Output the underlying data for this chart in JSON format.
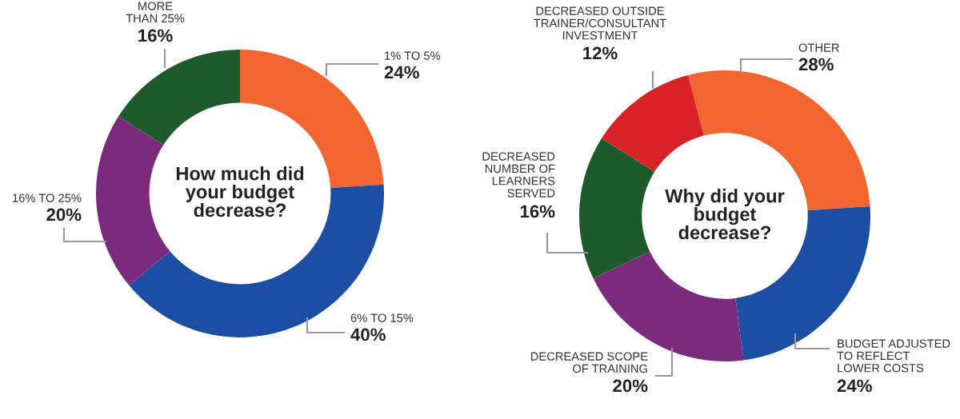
{
  "chart_data": [
    {
      "type": "donut",
      "title": "How much did\nyour budget\ndecrease?",
      "categories": [
        "1% TO 5%",
        "6% TO 15%",
        "16% TO 25%",
        "MORE\nTHAN 25%"
      ],
      "values": [
        24,
        40,
        20,
        16
      ],
      "value_labels": [
        "24%",
        "40%",
        "20%",
        "16%"
      ],
      "colors": [
        "#f26430",
        "#1b4fa3",
        "#7b2a7e",
        "#1d5a2c"
      ]
    },
    {
      "type": "donut",
      "title": "Why did your\nbudget\ndecrease?",
      "categories": [
        "OTHER",
        "BUDGET ADJUSTED\nTO REFLECT\nLOWER COSTS",
        "DECREASED SCOPE\nOF TRAINING",
        "DECREASED\nNUMBER OF\nLEARNERS\nSERVED",
        "DECREASED OUTSIDE\nTRAINER/CONSULTANT\nINVESTMENT"
      ],
      "values": [
        28,
        24,
        20,
        16,
        12
      ],
      "value_labels": [
        "28%",
        "24%",
        "20%",
        "16%",
        "12%"
      ],
      "colors": [
        "#f26430",
        "#1b4fa3",
        "#7b2a7e",
        "#1d5a2c",
        "#d92128"
      ]
    }
  ]
}
